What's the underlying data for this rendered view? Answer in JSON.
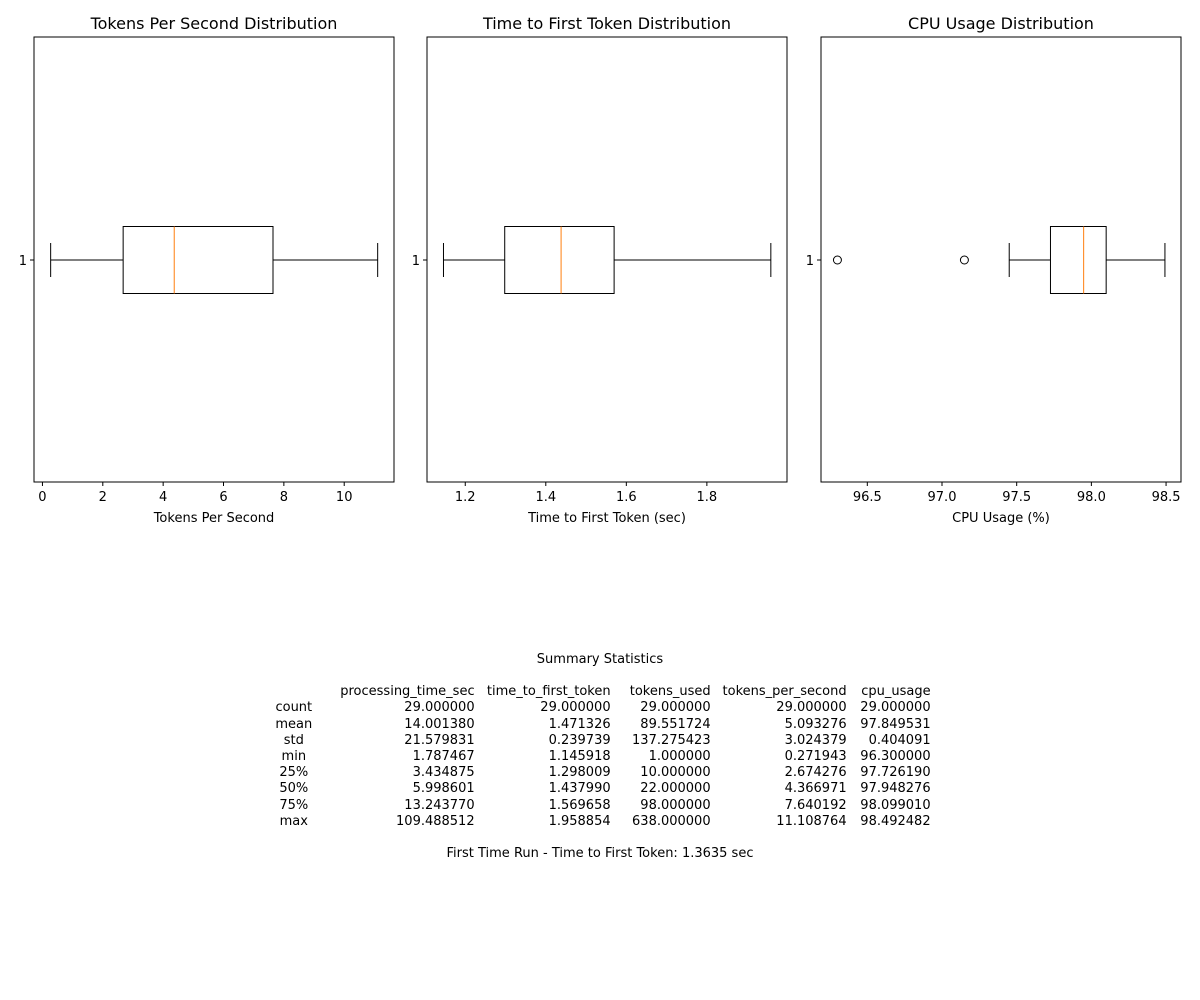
{
  "chart_data": [
    {
      "type": "boxplot",
      "orientation": "horizontal",
      "title": "Tokens Per Second Distribution",
      "xlabel": "Tokens Per Second",
      "ylabel": "",
      "xlim": [
        -0.28,
        11.65
      ],
      "xticks": [
        0,
        2,
        4,
        6,
        8,
        10
      ],
      "xtick_labels": [
        "0",
        "2",
        "4",
        "6",
        "8",
        "10"
      ],
      "yticks": [
        "1"
      ],
      "boxes": [
        {
          "category": "1",
          "whisker_low": 0.271943,
          "q1": 2.674276,
          "median": 4.366971,
          "q3": 7.640192,
          "whisker_high": 11.108764,
          "outliers": []
        }
      ]
    },
    {
      "type": "boxplot",
      "orientation": "horizontal",
      "title": "Time to First Token Distribution",
      "xlabel": "Time to First Token (sec)",
      "ylabel": "",
      "xlim": [
        1.105,
        1.999
      ],
      "xticks": [
        1.2,
        1.4,
        1.6,
        1.8
      ],
      "xtick_labels": [
        "1.2",
        "1.4",
        "1.6",
        "1.8"
      ],
      "yticks": [
        "1"
      ],
      "boxes": [
        {
          "category": "1",
          "whisker_low": 1.145918,
          "q1": 1.298009,
          "median": 1.43799,
          "q3": 1.569658,
          "whisker_high": 1.958854,
          "outliers": []
        }
      ]
    },
    {
      "type": "boxplot",
      "orientation": "horizontal",
      "title": "CPU Usage Distribution",
      "xlabel": "CPU Usage (%)",
      "ylabel": "",
      "xlim": [
        96.19,
        98.6
      ],
      "xticks": [
        96.5,
        97.0,
        97.5,
        98.0,
        98.5
      ],
      "xtick_labels": [
        "96.5",
        "97.0",
        "97.5",
        "98.0",
        "98.5"
      ],
      "yticks": [
        "1"
      ],
      "boxes": [
        {
          "category": "1",
          "whisker_low": 97.45,
          "q1": 97.72619,
          "median": 97.948276,
          "q3": 98.09901,
          "whisker_high": 98.492482,
          "outliers": [
            96.3,
            97.15
          ]
        }
      ]
    }
  ],
  "colors": {
    "median": "#ff7f0e",
    "box": "#000000",
    "background": "#ffffff"
  },
  "summary": {
    "title": "Summary Statistics",
    "columns": [
      "",
      "processing_time_sec",
      "time_to_first_token",
      "tokens_used",
      "tokens_per_second",
      "cpu_usage"
    ],
    "rows": [
      [
        "count",
        "29.000000",
        "29.000000",
        "29.000000",
        "29.000000",
        "29.000000"
      ],
      [
        "mean",
        "14.001380",
        "1.471326",
        "89.551724",
        "5.093276",
        "97.849531"
      ],
      [
        "std",
        "21.579831",
        "0.239739",
        "137.275423",
        "3.024379",
        "0.404091"
      ],
      [
        "min",
        "1.787467",
        "1.145918",
        "1.000000",
        "0.271943",
        "96.300000"
      ],
      [
        "25%",
        "3.434875",
        "1.298009",
        "10.000000",
        "2.674276",
        "97.726190"
      ],
      [
        "50%",
        "5.998601",
        "1.437990",
        "22.000000",
        "4.366971",
        "97.948276"
      ],
      [
        "75%",
        "13.243770",
        "1.569658",
        "98.000000",
        "7.640192",
        "98.099010"
      ],
      [
        "max",
        "109.488512",
        "1.958854",
        "638.000000",
        "11.108764",
        "98.492482"
      ]
    ],
    "footnote": "First Time Run - Time to First Token: 1.3635 sec"
  }
}
